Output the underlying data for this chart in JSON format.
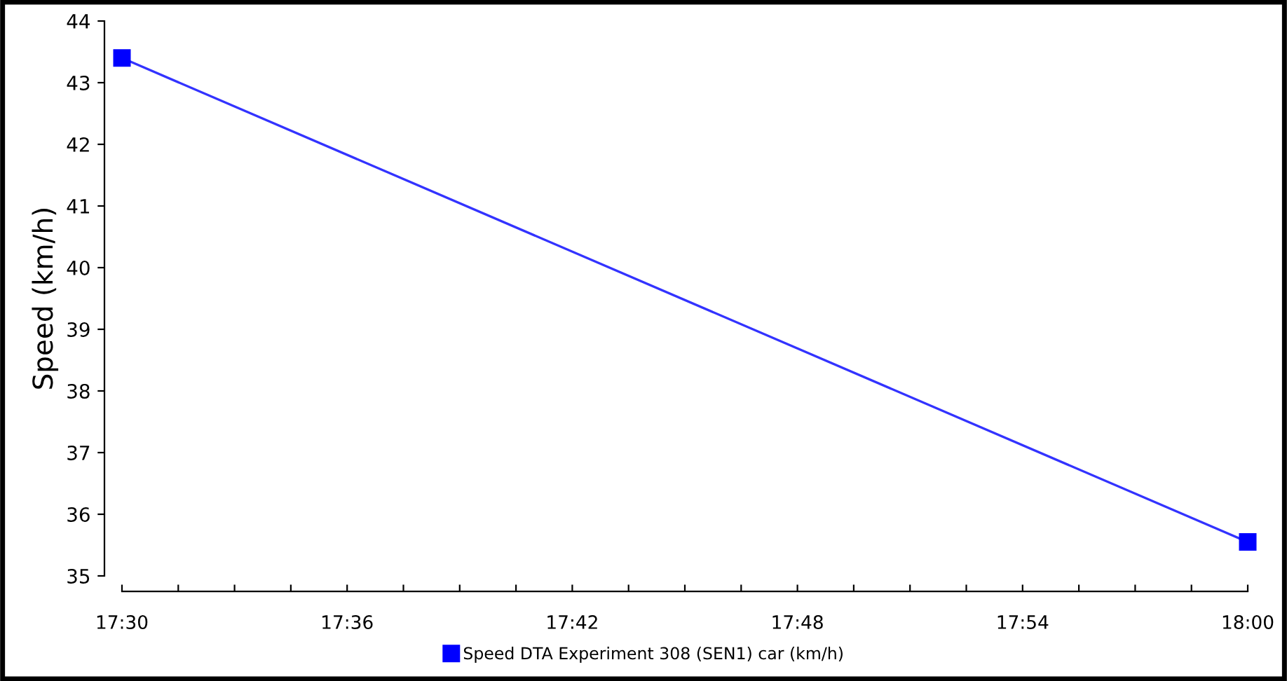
{
  "chart_data": {
    "type": "line",
    "ylabel": "Speed (km/h)",
    "x": [
      17.5,
      18.0
    ],
    "series": [
      {
        "name": "Speed DTA Experiment 308 (SEN1) car (km/h)",
        "color": "#0000ff",
        "values": [
          43.4,
          35.55
        ]
      }
    ],
    "xlim": [
      17.5,
      18.0
    ],
    "xticks": [
      {
        "value": 17.5,
        "label": "17:30"
      },
      {
        "value": 17.525,
        "label": null
      },
      {
        "value": 17.55,
        "label": null
      },
      {
        "value": 17.575,
        "label": null
      },
      {
        "value": 17.6,
        "label": "17:36"
      },
      {
        "value": 17.625,
        "label": null
      },
      {
        "value": 17.65,
        "label": null
      },
      {
        "value": 17.675,
        "label": null
      },
      {
        "value": 17.7,
        "label": "17:42"
      },
      {
        "value": 17.725,
        "label": null
      },
      {
        "value": 17.75,
        "label": null
      },
      {
        "value": 17.775,
        "label": null
      },
      {
        "value": 17.8,
        "label": "17:48"
      },
      {
        "value": 17.825,
        "label": null
      },
      {
        "value": 17.85,
        "label": null
      },
      {
        "value": 17.875,
        "label": null
      },
      {
        "value": 17.9,
        "label": "17:54"
      },
      {
        "value": 17.925,
        "label": null
      },
      {
        "value": 17.95,
        "label": null
      },
      {
        "value": 17.975,
        "label": null
      },
      {
        "value": 18.0,
        "label": "18:00"
      }
    ],
    "ylim": [
      35,
      44
    ],
    "yticks": [
      35,
      36,
      37,
      38,
      39,
      40,
      41,
      42,
      43,
      44
    ],
    "grid": false,
    "legend": "bottom",
    "marker": "square",
    "line_style": "solid"
  }
}
